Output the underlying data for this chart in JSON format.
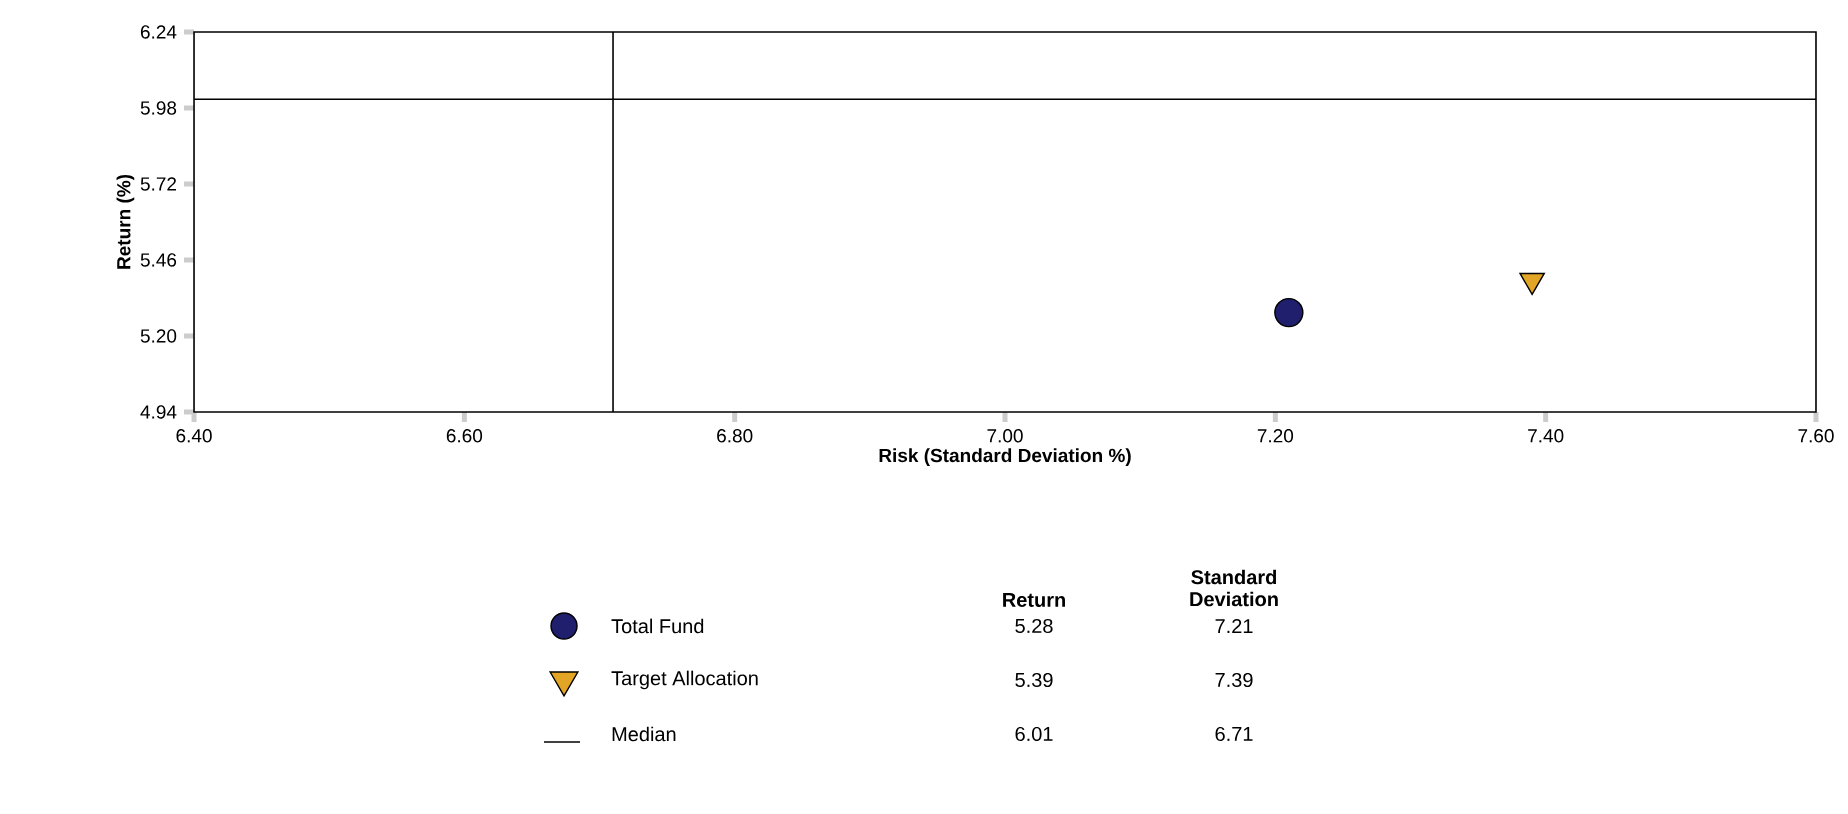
{
  "chart_data": {
    "type": "scatter",
    "xlabel": "Risk (Standard Deviation %)",
    "ylabel": "Return (%)",
    "xlim": [
      6.4,
      7.6
    ],
    "ylim": [
      4.94,
      6.24
    ],
    "xticks": [
      {
        "value": 6.4,
        "label": "6.40"
      },
      {
        "value": 6.6,
        "label": "6.60"
      },
      {
        "value": 6.8,
        "label": "6.80"
      },
      {
        "value": 7.0,
        "label": "7.00"
      },
      {
        "value": 7.2,
        "label": "7.20"
      },
      {
        "value": 7.4,
        "label": "7.40"
      },
      {
        "value": 7.6,
        "label": "7.60"
      }
    ],
    "yticks": [
      {
        "value": 4.94,
        "label": "4.94"
      },
      {
        "value": 5.2,
        "label": "5.20"
      },
      {
        "value": 5.46,
        "label": "5.46"
      },
      {
        "value": 5.72,
        "label": "5.72"
      },
      {
        "value": 5.98,
        "label": "5.98"
      },
      {
        "value": 6.24,
        "label": "6.24"
      }
    ],
    "series": [
      {
        "name": "Total Fund",
        "color": "#1f1f6e",
        "x": [
          7.21
        ],
        "values": [
          5.28
        ],
        "marker": "circle"
      },
      {
        "name": "Target Allocation",
        "color": "#e3a526",
        "x": [
          7.39
        ],
        "values": [
          5.39
        ],
        "marker": "triangle"
      }
    ],
    "ref_lines": [
      {
        "axis": "y",
        "value": 6.01,
        "label": "Median",
        "color": "#000000"
      },
      {
        "axis": "x",
        "value": 6.71,
        "color": "#000000"
      }
    ],
    "annotations": [
      "Return",
      "Standard Deviation",
      "5.28",
      "7.21",
      "5.39",
      "7.39",
      "6.01",
      "6.71"
    ],
    "legend": "bottom",
    "grid": false
  }
}
